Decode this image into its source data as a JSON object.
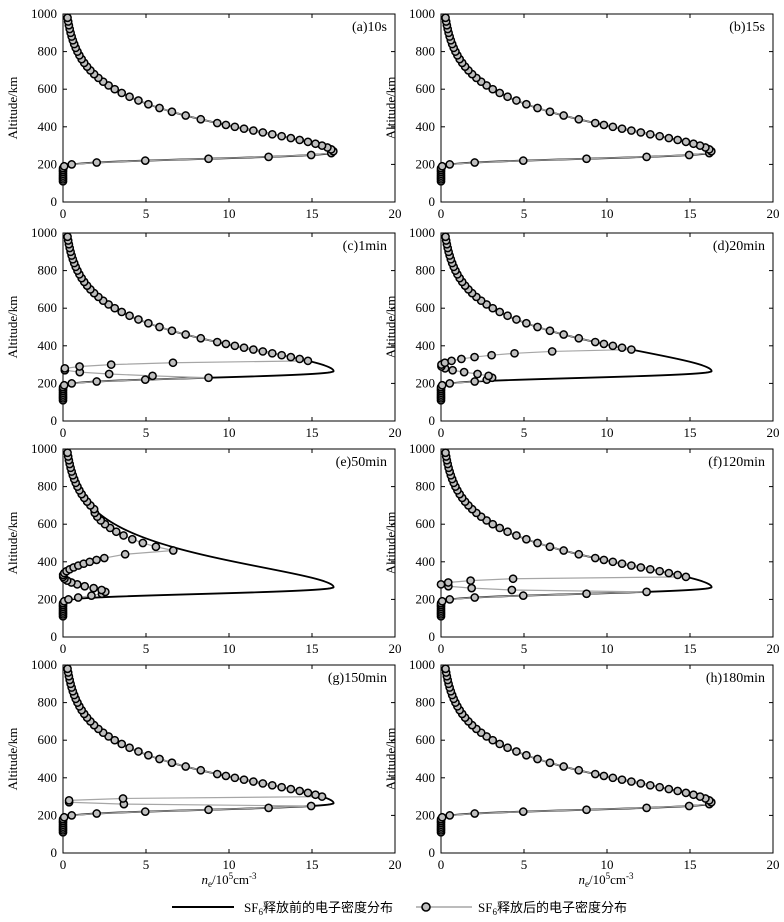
{
  "figure": {
    "x_label_main": "n",
    "x_label_sub": "e",
    "x_label_unit": "/10",
    "x_label_exp_base": "5",
    "x_label_unit2": "cm",
    "x_label_exp": "-3",
    "y_label": "Altitude/km"
  },
  "legend": {
    "before_prefix": "SF",
    "before_sub": "6",
    "before_text": "释放前的电子密度分布",
    "after_prefix": "SF",
    "after_sub": "6",
    "after_text": "释放后的电子密度分布"
  },
  "colors": {
    "before_line": "#000000",
    "after_line": "#a6a6a6",
    "marker_edge": "#000000",
    "marker_fill": "#bfbfbf"
  },
  "chart_data": {
    "type": "line",
    "xlim": [
      0,
      20
    ],
    "ylim": [
      0,
      1000
    ],
    "xticks": [
      0,
      5,
      10,
      15,
      20
    ],
    "yticks": [
      0,
      200,
      400,
      600,
      800,
      1000
    ],
    "grid": false,
    "base_profile": {
      "name": "SF6释放前的电子密度分布",
      "type": "Chapman layer",
      "peak_density": 16.3,
      "peak_altitude": 265,
      "scale_height_top": 78,
      "scale_height_bottom": 28,
      "min_altitude": 105,
      "max_altitude": 980
    },
    "panels": [
      {
        "label": "(a)10s",
        "altitudes": [
          110,
          120,
          130,
          140,
          150,
          160,
          170,
          180,
          190,
          200,
          210,
          220,
          230,
          240,
          250,
          260,
          270,
          280,
          290,
          300,
          310,
          320,
          330,
          340,
          350,
          360,
          370,
          380,
          390,
          400,
          410,
          420,
          440,
          460,
          480,
          500,
          520,
          540,
          560,
          580,
          600,
          620,
          640,
          660,
          680,
          700,
          720,
          740,
          760,
          780,
          800,
          820,
          840,
          860,
          880,
          900,
          920,
          940,
          960,
          980
        ],
        "holes": [
          {
            "center": 275,
            "halfwidth": 5,
            "depth": 0.98
          }
        ]
      },
      {
        "label": "(b)15s",
        "altitudes": [
          110,
          120,
          130,
          140,
          150,
          160,
          170,
          180,
          190,
          200,
          210,
          220,
          230,
          240,
          250,
          260,
          270,
          280,
          290,
          300,
          310,
          320,
          330,
          340,
          350,
          360,
          370,
          380,
          390,
          400,
          410,
          420,
          440,
          460,
          480,
          500,
          520,
          540,
          560,
          580,
          600,
          620,
          640,
          660,
          680,
          700,
          720,
          740,
          760,
          780,
          800,
          820,
          840,
          860,
          880,
          900,
          920,
          940,
          960,
          980
        ],
        "holes": [
          {
            "center": 275,
            "halfwidth": 5,
            "depth": 1.0
          }
        ]
      },
      {
        "label": "(c)1min",
        "altitudes": [
          110,
          120,
          130,
          140,
          150,
          160,
          170,
          180,
          190,
          200,
          210,
          220,
          230,
          240,
          250,
          260,
          270,
          280,
          290,
          300,
          310,
          320,
          330,
          340,
          350,
          360,
          370,
          380,
          390,
          400,
          410,
          420,
          440,
          460,
          480,
          500,
          520,
          540,
          560,
          580,
          600,
          620,
          640,
          660,
          680,
          700,
          720,
          740,
          760,
          780,
          800,
          820,
          840,
          860,
          880,
          900,
          920,
          940,
          960,
          980
        ],
        "holes": [
          {
            "center": 275,
            "halfwidth": 40,
            "depth": 1.0
          }
        ]
      },
      {
        "label": "(d)20min",
        "altitudes": [
          110,
          120,
          130,
          140,
          150,
          160,
          170,
          180,
          190,
          200,
          210,
          220,
          230,
          240,
          250,
          260,
          270,
          280,
          290,
          300,
          310,
          320,
          330,
          340,
          350,
          360,
          370,
          380,
          390,
          400,
          410,
          420,
          440,
          460,
          480,
          500,
          520,
          540,
          560,
          580,
          600,
          620,
          640,
          660,
          680,
          700,
          720,
          740,
          760,
          780,
          800,
          820,
          840,
          860,
          880,
          900,
          920,
          940,
          960,
          980
        ],
        "holes": [
          {
            "center": 295,
            "halfwidth": 80,
            "depth": 1.0
          }
        ]
      },
      {
        "label": "(e)50min",
        "altitudes": [
          110,
          120,
          130,
          140,
          150,
          160,
          170,
          180,
          190,
          200,
          210,
          220,
          230,
          240,
          250,
          260,
          270,
          280,
          290,
          300,
          310,
          320,
          330,
          340,
          350,
          360,
          370,
          380,
          390,
          400,
          410,
          420,
          440,
          460,
          480,
          500,
          520,
          540,
          560,
          580,
          600,
          620,
          640,
          660,
          680,
          700,
          720,
          740,
          760,
          780,
          800,
          820,
          840,
          860,
          880,
          900,
          920,
          940,
          960,
          980
        ],
        "holes": [
          {
            "center": 325,
            "halfwidth": 130,
            "depth": 1.0
          },
          {
            "center": 560,
            "halfwidth": 110,
            "depth": 0.2
          }
        ]
      },
      {
        "label": "(f)120min",
        "altitudes": [
          110,
          120,
          130,
          140,
          150,
          160,
          170,
          180,
          190,
          200,
          210,
          220,
          230,
          240,
          250,
          260,
          270,
          280,
          290,
          300,
          310,
          320,
          330,
          340,
          350,
          360,
          370,
          380,
          390,
          400,
          410,
          420,
          440,
          460,
          480,
          500,
          520,
          540,
          560,
          580,
          600,
          620,
          640,
          660,
          680,
          700,
          720,
          740,
          760,
          780,
          800,
          820,
          840,
          860,
          880,
          900,
          920,
          940,
          960,
          980
        ],
        "holes": [
          {
            "center": 280,
            "halfwidth": 40,
            "depth": 1.0
          }
        ]
      },
      {
        "label": "(g)150min",
        "altitudes": [
          110,
          120,
          130,
          140,
          150,
          160,
          170,
          180,
          190,
          200,
          210,
          220,
          230,
          240,
          250,
          260,
          270,
          280,
          290,
          300,
          310,
          320,
          330,
          340,
          350,
          360,
          370,
          380,
          390,
          400,
          410,
          420,
          440,
          460,
          480,
          500,
          520,
          540,
          560,
          580,
          600,
          620,
          640,
          660,
          680,
          700,
          720,
          740,
          760,
          780,
          800,
          820,
          840,
          860,
          880,
          900,
          920,
          940,
          960,
          980
        ],
        "holes": [
          {
            "center": 275,
            "halfwidth": 22,
            "depth": 1.0
          }
        ]
      },
      {
        "label": "(h)180min",
        "altitudes": [
          110,
          120,
          130,
          140,
          150,
          160,
          170,
          180,
          190,
          200,
          210,
          220,
          230,
          240,
          250,
          260,
          270,
          280,
          290,
          300,
          310,
          320,
          330,
          340,
          350,
          360,
          370,
          380,
          390,
          400,
          410,
          420,
          440,
          460,
          480,
          500,
          520,
          540,
          560,
          580,
          600,
          620,
          640,
          660,
          680,
          700,
          720,
          740,
          760,
          780,
          800,
          820,
          840,
          860,
          880,
          900,
          920,
          940,
          960,
          980
        ],
        "holes": []
      }
    ]
  }
}
